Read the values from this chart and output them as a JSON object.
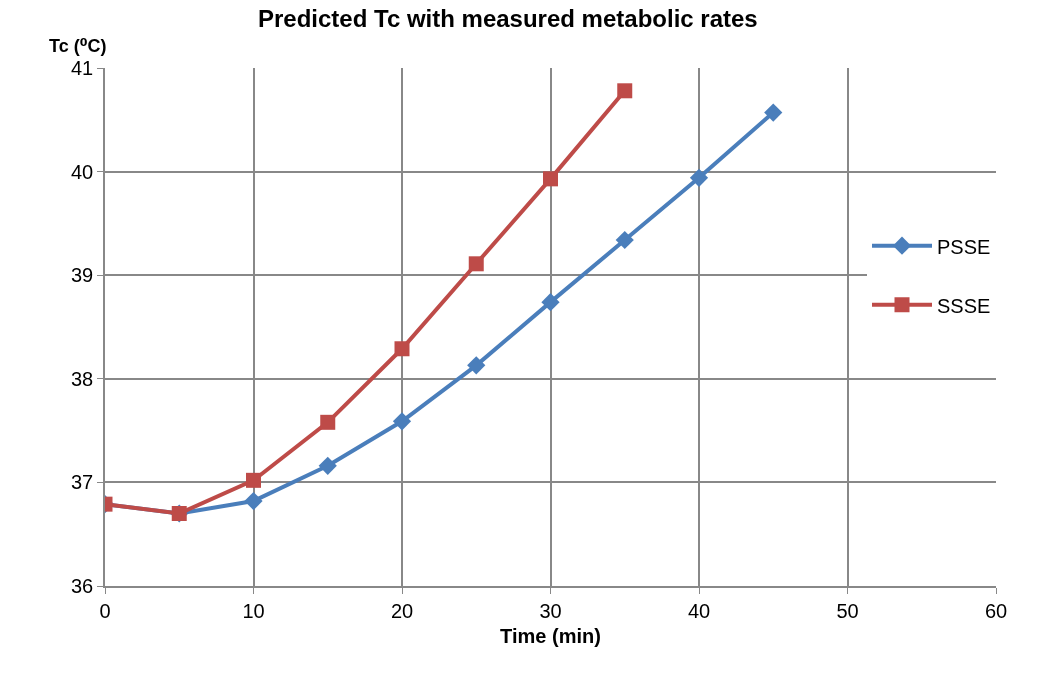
{
  "chart_data": {
    "type": "line",
    "title": "Predicted Tc with measured metabolic rates",
    "xlabel": "Time (min)",
    "ylabel": "Tc (⁰C)",
    "x": [
      0,
      5,
      10,
      15,
      20,
      25,
      30,
      35,
      40,
      45
    ],
    "series": [
      {
        "name": "PSSE",
        "color": "#4a7ebb",
        "marker": "diamond",
        "values": [
          36.79,
          36.7,
          36.82,
          37.16,
          37.59,
          38.13,
          38.74,
          39.34,
          39.94,
          40.57
        ]
      },
      {
        "name": "SSSE",
        "color": "#be4b48",
        "marker": "square",
        "values": [
          36.79,
          36.7,
          37.02,
          37.58,
          38.29,
          39.11,
          39.93,
          40.78,
          null,
          null
        ]
      }
    ],
    "xlim": [
      0,
      60
    ],
    "xticks": [
      0,
      10,
      20,
      30,
      40,
      50,
      60
    ],
    "ylim": [
      36,
      41
    ],
    "yticks": [
      36,
      37,
      38,
      39,
      40,
      41
    ],
    "grid": true,
    "legend": "right",
    "line_style": "solid"
  }
}
